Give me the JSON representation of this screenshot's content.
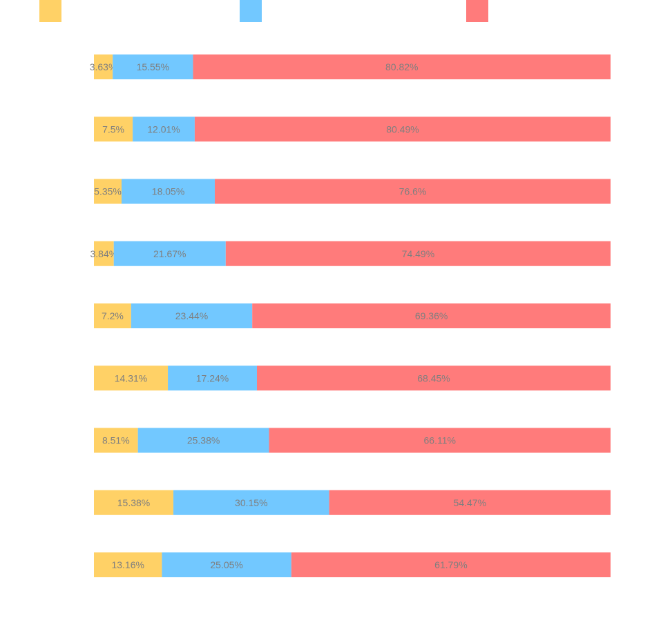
{
  "chart_data": {
    "type": "bar",
    "orientation": "horizontal",
    "stacked": "percent",
    "title": "",
    "xlabel": "",
    "ylabel": "",
    "legend_position": "top",
    "grid": false,
    "series": [
      {
        "name": "",
        "color": "#FFD166",
        "values": [
          3.63,
          7.5,
          5.35,
          3.84,
          7.2,
          14.31,
          8.51,
          15.38,
          13.16
        ],
        "labels": [
          "3.63%",
          "7.5%",
          "5.35%",
          "3.84%",
          "7.2%",
          "14.31%",
          "8.51%",
          "15.38%",
          "13.16%"
        ]
      },
      {
        "name": "",
        "color": "#72C8FF",
        "values": [
          15.55,
          12.01,
          18.05,
          21.67,
          23.44,
          17.24,
          25.38,
          30.15,
          25.05
        ],
        "labels": [
          "15.55%",
          "12.01%",
          "18.05%",
          "21.67%",
          "23.44%",
          "17.24%",
          "25.38%",
          "30.15%",
          "25.05%"
        ]
      },
      {
        "name": "",
        "color": "#FF7B7B",
        "values": [
          80.82,
          80.49,
          76.6,
          74.49,
          69.36,
          68.45,
          66.11,
          54.47,
          61.79
        ],
        "labels": [
          "80.82%",
          "80.49%",
          "76.6%",
          "74.49%",
          "69.36%",
          "68.45%",
          "66.11%",
          "54.47%",
          "61.79%"
        ]
      }
    ]
  }
}
